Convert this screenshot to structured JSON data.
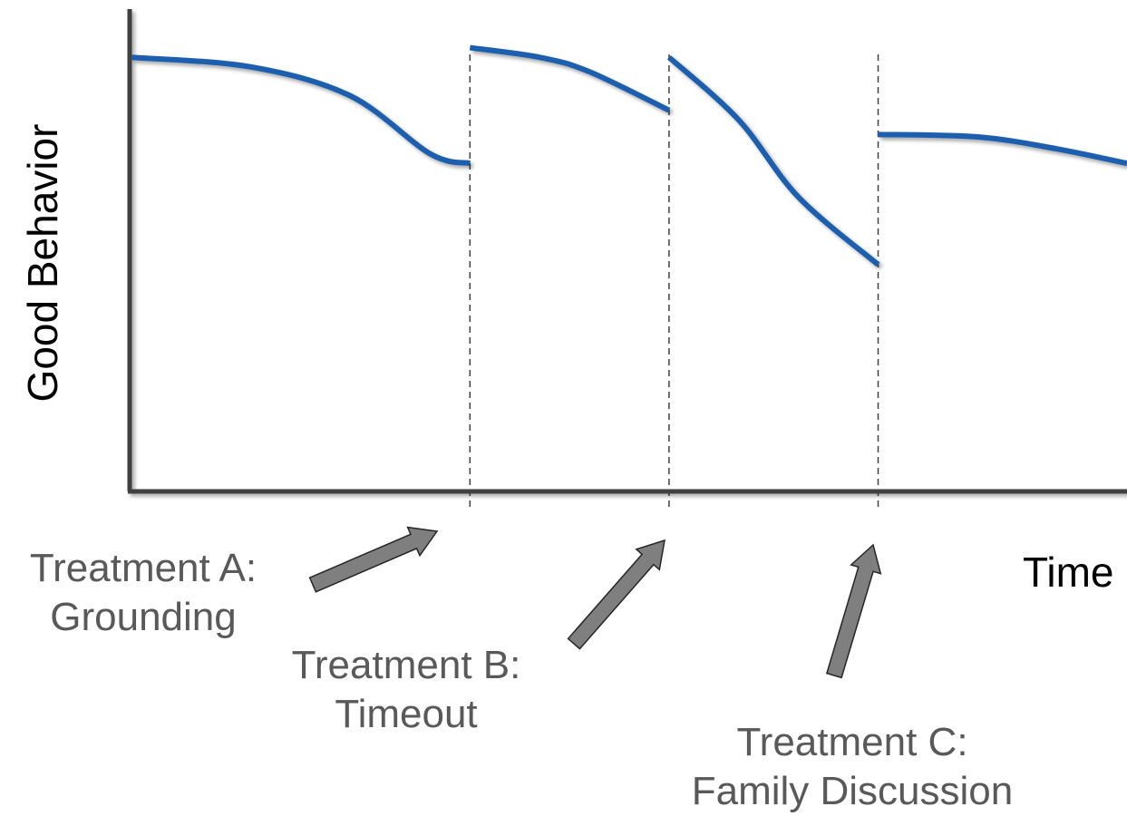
{
  "chart_data": {
    "type": "line",
    "xlabel": "Time",
    "ylabel": "Good Behavior",
    "grid": false,
    "legend": "none",
    "axis_ticks": "none",
    "xlim": [
      0,
      100
    ],
    "ylim": [
      0,
      100
    ],
    "segments": [
      {
        "x": [
          0,
          12,
          22,
          30,
          34
        ],
        "y": [
          90,
          88,
          82,
          70,
          68
        ]
      },
      {
        "x": [
          34,
          41,
          46,
          54
        ],
        "y": [
          92,
          90,
          87,
          79
        ]
      },
      {
        "x": [
          54,
          61,
          67,
          75
        ],
        "y": [
          90,
          77,
          61,
          47
        ]
      },
      {
        "x": [
          75,
          85,
          93,
          100
        ],
        "y": [
          74,
          73.5,
          71,
          68
        ]
      }
    ],
    "treatment_points_x": [
      34,
      54,
      75
    ],
    "annotations": [
      {
        "line1": "Treatment A:",
        "line2": "Grounding"
      },
      {
        "line1": "Treatment B:",
        "line2": "Timeout"
      },
      {
        "line1": "Treatment C:",
        "line2": "Family Discussion"
      }
    ],
    "colors": {
      "line": "#1f5fae",
      "axis": "#404040",
      "arrow": "#7f7f7f",
      "divider": "#404040"
    }
  }
}
